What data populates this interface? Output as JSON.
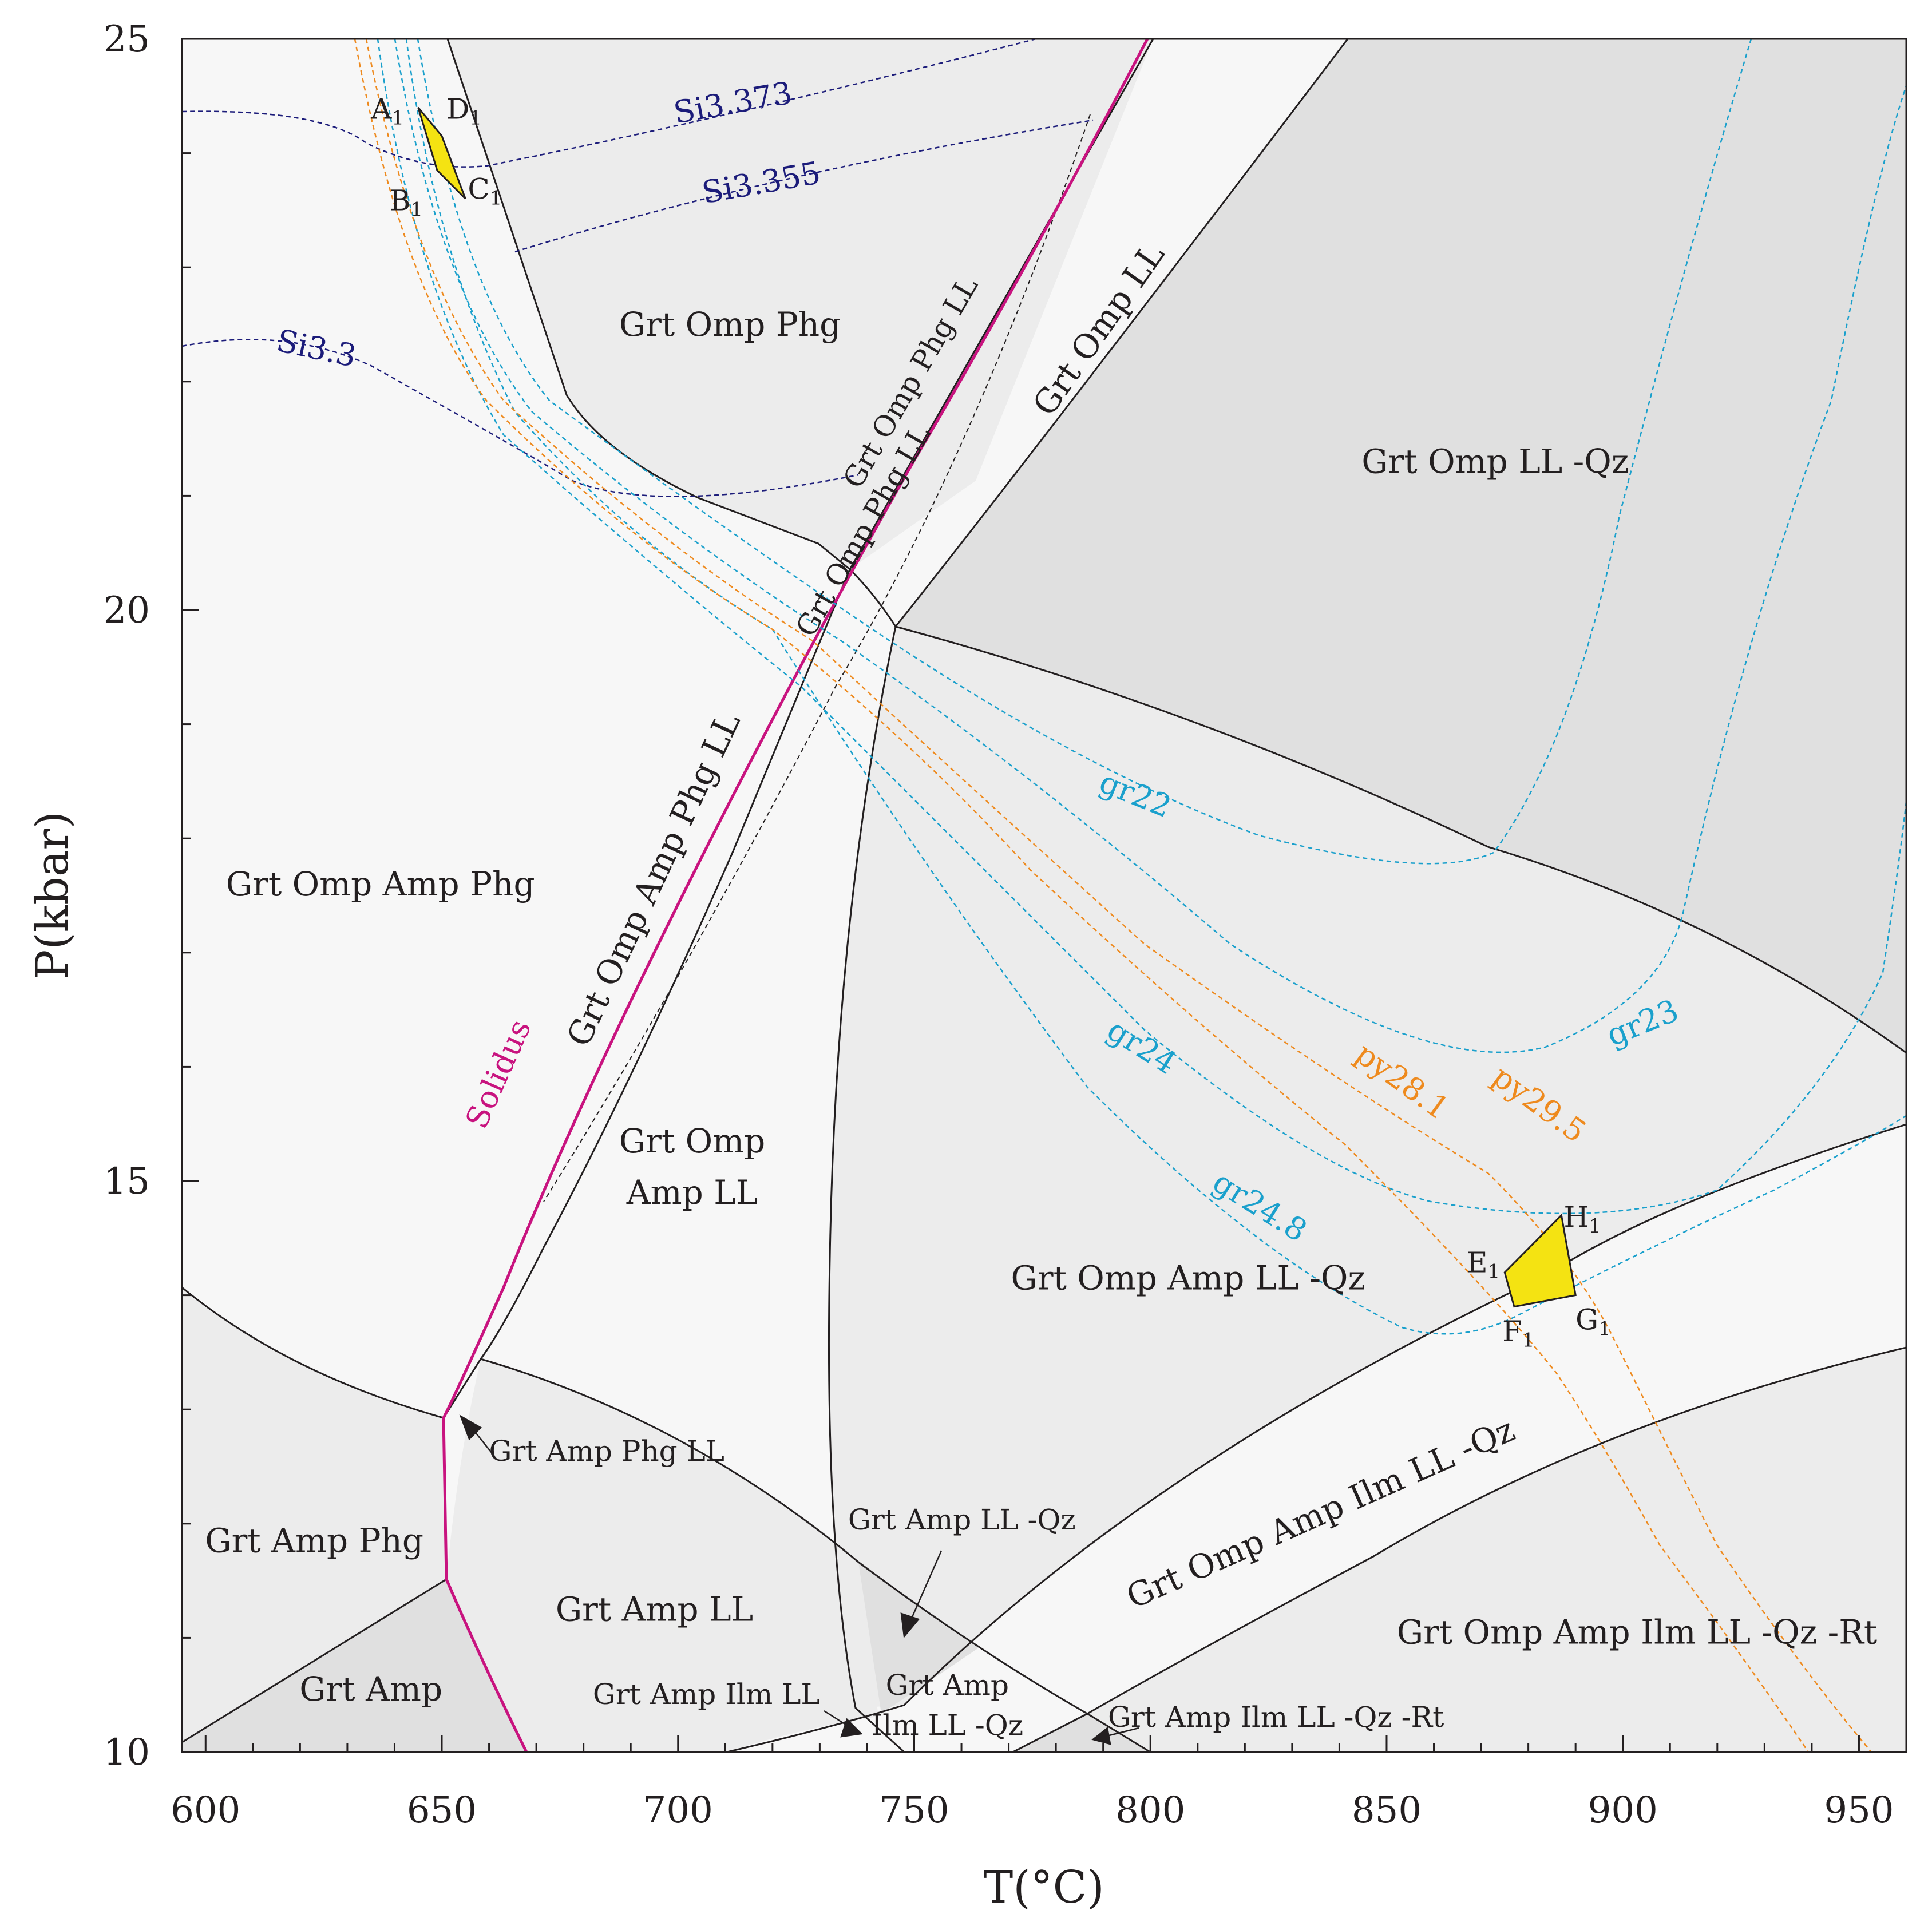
{
  "diagram": {
    "type": "pseudosection",
    "x_axis": {
      "title": "T(°C)",
      "range": [
        595,
        960
      ],
      "ticks": [
        {
          "value": 600,
          "label": "600"
        },
        {
          "value": 650,
          "label": "650"
        },
        {
          "value": 700,
          "label": "700"
        },
        {
          "value": 750,
          "label": "750"
        },
        {
          "value": 800,
          "label": "800"
        },
        {
          "value": 850,
          "label": "850"
        },
        {
          "value": 900,
          "label": "900"
        },
        {
          "value": 950,
          "label": "950"
        }
      ]
    },
    "y_axis": {
      "title": "P(kbar)",
      "range": [
        10,
        25
      ],
      "ticks": [
        {
          "value": 10,
          "label": "10"
        },
        {
          "value": 15,
          "label": "15"
        },
        {
          "value": 20,
          "label": "20"
        },
        {
          "value": 25,
          "label": "25"
        }
      ]
    },
    "colors": {
      "field_lightest": "#f7f7f7",
      "field_light": "#ececec",
      "field_mid": "#e0e0e0",
      "boundary": "#231f20",
      "solidus": "#c8137f",
      "si_isopleth": "#1c1c7a",
      "gr_isopleth": "#1aa0cc",
      "py_isopleth": "#ee8a1e",
      "pt_box": "#f4e312"
    },
    "field_labels": [
      {
        "id": "grt-omp-phg",
        "text": "Grt Omp Phg",
        "T": 711,
        "P": 22.4,
        "rotate": 0,
        "size": "normal"
      },
      {
        "id": "grt-omp-ll",
        "text": "Grt Omp LL",
        "T": 791,
        "P": 22.4,
        "rotate": -55,
        "size": "normal"
      },
      {
        "id": "grt-omp-ll-qz",
        "text": "Grt Omp LL -Qz",
        "T": 873,
        "P": 21.2,
        "rotate": 0,
        "size": "normal"
      },
      {
        "id": "grt-omp-phg-ll",
        "text": "Grt Omp Phg LL",
        "T": 751,
        "P": 21.95,
        "rotate": -60,
        "size": "small"
      },
      {
        "id": "grt-omp-phg-ll-b",
        "text": "Grt Omp Phg LL",
        "T": 741,
        "P": 20.65,
        "rotate": -60,
        "size": "small"
      },
      {
        "id": "grt-omp-amp-phg-ll",
        "text": "Grt Omp Amp Phg LL",
        "T": 697,
        "P": 17.6,
        "rotate": -65,
        "size": "normal"
      },
      {
        "id": "grt-omp-amp-phg",
        "text": "Grt Omp Amp Phg",
        "T": 637,
        "P": 17.5,
        "rotate": 0,
        "size": "normal"
      },
      {
        "id": "grt-omp-amp-ll-1",
        "text": "Grt Omp",
        "T": 703,
        "P": 15.25,
        "rotate": 0,
        "size": "normal"
      },
      {
        "id": "grt-omp-amp-ll-2",
        "text": "Amp LL",
        "T": 703,
        "P": 14.8,
        "rotate": 0,
        "size": "normal"
      },
      {
        "id": "grt-omp-amp-ll-qz",
        "text": "Grt Omp Amp LL -Qz",
        "T": 808,
        "P": 14.05,
        "rotate": 0,
        "size": "normal"
      },
      {
        "id": "grt-amp-phg-ll",
        "text": "Grt Amp Phg LL",
        "T": 660,
        "P": 12.55,
        "rotate": 0,
        "size": "small",
        "anchor": "start"
      },
      {
        "id": "grt-amp-phg",
        "text": "Grt Amp Phg",
        "T": 623,
        "P": 11.75,
        "rotate": 0,
        "size": "normal"
      },
      {
        "id": "grt-amp-ll",
        "text": "Grt Amp LL",
        "T": 695,
        "P": 11.15,
        "rotate": 0,
        "size": "normal"
      },
      {
        "id": "grt-amp",
        "text": "Grt Amp",
        "T": 635,
        "P": 10.45,
        "rotate": 0,
        "size": "normal"
      },
      {
        "id": "grt-amp-ll-qz",
        "text": "Grt Amp LL -Qz",
        "T": 736,
        "P": 11.95,
        "rotate": 0,
        "size": "small",
        "anchor": "start"
      },
      {
        "id": "grt-amp-ilm-ll",
        "text": "Grt Amp Ilm LL",
        "T": 706,
        "P": 10.42,
        "rotate": 0,
        "size": "small"
      },
      {
        "id": "grt-amp-ilm-ll-qz-1",
        "text": "Grt Amp",
        "T": 757,
        "P": 10.5,
        "rotate": 0,
        "size": "small"
      },
      {
        "id": "grt-amp-ilm-ll-qz-2",
        "text": "Ilm LL -Qz",
        "T": 757,
        "P": 10.15,
        "rotate": 0,
        "size": "small"
      },
      {
        "id": "grt-amp-ilm-ll-qz-rt",
        "text": "Grt Amp Ilm LL -Qz -Rt",
        "T": 791,
        "P": 10.22,
        "rotate": 0,
        "size": "small",
        "anchor": "start"
      },
      {
        "id": "grt-omp-amp-ilm-ll-qz",
        "text": "Grt Omp Amp Ilm LL -Qz",
        "T": 837,
        "P": 12.0,
        "rotate": -24,
        "size": "normal"
      },
      {
        "id": "grt-omp-amp-ilm-ll-qz-rt",
        "text": "Grt Omp Amp Ilm LL -Qz -Rt",
        "T": 903,
        "P": 10.95,
        "rotate": 0,
        "size": "normal"
      }
    ],
    "isopleth_labels": [
      {
        "id": "si3373",
        "text": "Si3.373",
        "T": 712,
        "P": 24.35,
        "rotate": -10,
        "kind": "si"
      },
      {
        "id": "si3355",
        "text": "Si3.355",
        "T": 718,
        "P": 23.65,
        "rotate": -10,
        "kind": "si"
      },
      {
        "id": "si33",
        "text": "Si3.3",
        "T": 623,
        "P": 22.2,
        "rotate": 12,
        "kind": "si"
      },
      {
        "id": "solidus",
        "text": "Solidus",
        "T": 664,
        "P": 15.9,
        "rotate": -66,
        "kind": "solidus"
      },
      {
        "id": "gr22",
        "text": "gr22",
        "T": 796,
        "P": 18.3,
        "rotate": 22,
        "kind": "gr"
      },
      {
        "id": "gr23",
        "text": "gr23",
        "T": 905,
        "P": 16.3,
        "rotate": -22,
        "kind": "gr"
      },
      {
        "id": "gr24",
        "text": "gr24",
        "T": 797,
        "P": 16.1,
        "rotate": 32,
        "kind": "gr"
      },
      {
        "id": "gr248",
        "text": "gr24.8",
        "T": 822,
        "P": 14.7,
        "rotate": 32,
        "kind": "gr"
      },
      {
        "id": "py281",
        "text": "py28.1",
        "T": 852,
        "P": 15.8,
        "rotate": 36,
        "kind": "py"
      },
      {
        "id": "py295",
        "text": "py29.5",
        "T": 881,
        "P": 15.6,
        "rotate": 36,
        "kind": "py"
      }
    ],
    "pt_boxes": [
      {
        "id": "box-upper",
        "corners": [
          {
            "T": 645,
            "P": 24.4
          },
          {
            "T": 650,
            "P": 24.15
          },
          {
            "T": 655,
            "P": 23.6
          },
          {
            "T": 649,
            "P": 23.85
          }
        ],
        "labels": [
          {
            "text": "A",
            "sub": "1",
            "T": 642,
            "P": 24.3,
            "anchor": "end"
          },
          {
            "text": "D",
            "sub": "1",
            "T": 651,
            "P": 24.3,
            "anchor": "start"
          },
          {
            "text": "B",
            "sub": "1",
            "T": 646,
            "P": 23.5,
            "anchor": "end"
          },
          {
            "text": "C",
            "sub": "1",
            "T": 655.5,
            "P": 23.6,
            "anchor": "start"
          }
        ]
      },
      {
        "id": "box-lower",
        "corners": [
          {
            "T": 875,
            "P": 14.2
          },
          {
            "T": 887,
            "P": 14.7
          },
          {
            "T": 890,
            "P": 14.0
          },
          {
            "T": 877,
            "P": 13.9
          }
        ],
        "labels": [
          {
            "text": "E",
            "sub": "1",
            "T": 874,
            "P": 14.2,
            "anchor": "end"
          },
          {
            "text": "H",
            "sub": "1",
            "T": 887.5,
            "P": 14.6,
            "anchor": "start"
          },
          {
            "text": "F",
            "sub": "1",
            "T": 874.5,
            "P": 13.6,
            "anchor": "start"
          },
          {
            "text": "G",
            "sub": "1",
            "T": 890,
            "P": 13.7,
            "anchor": "start"
          }
        ]
      }
    ]
  }
}
